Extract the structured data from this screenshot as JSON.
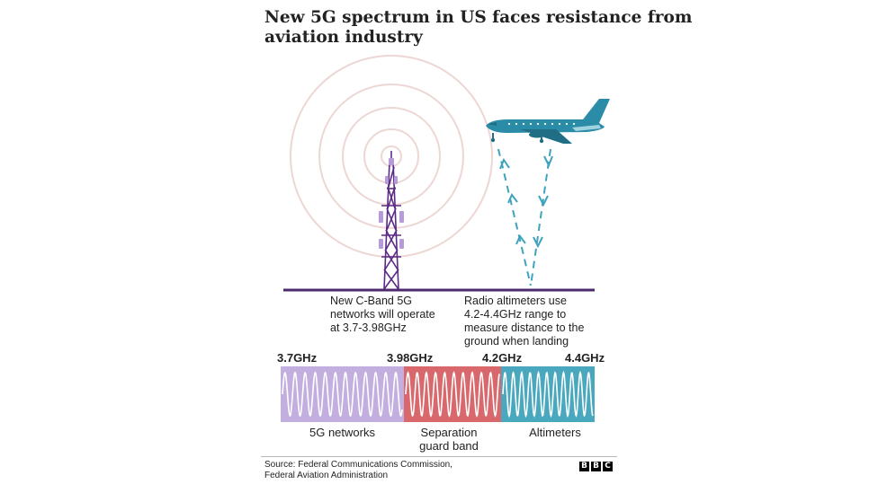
{
  "title": {
    "line1": "New 5G spectrum in US faces resistance from",
    "line2": "aviation industry"
  },
  "captions": {
    "tower": [
      "New C-Band 5G",
      "networks will operate",
      "at 3.7-3.98GHz"
    ],
    "altimeter": [
      "Radio altimeters use",
      "4.2-4.4GHz range to",
      "measure distance to the",
      "ground when landing"
    ]
  },
  "frequencies": [
    "3.7GHz",
    "3.98GHz",
    "4.2GHz",
    "4.4GHz"
  ],
  "bands": [
    {
      "label": [
        "5G networks"
      ],
      "color": "#c2aedf"
    },
    {
      "label": [
        "Separation",
        "guard band"
      ],
      "color": "#d9686c"
    },
    {
      "label": [
        "Altimeters"
      ],
      "color": "#4aa8be"
    }
  ],
  "source": [
    "Source: Federal Communications Commission,",
    "Federal Aviation Administration"
  ],
  "logo": [
    "B",
    "B",
    "C"
  ],
  "colors": {
    "tower": "#5b2a86",
    "tower_light": "#b79bd9",
    "rings": "#edd7d4",
    "plane": "#2a8ca6",
    "arrows": "#3fa3bd",
    "ground": "#4b2a6e"
  }
}
